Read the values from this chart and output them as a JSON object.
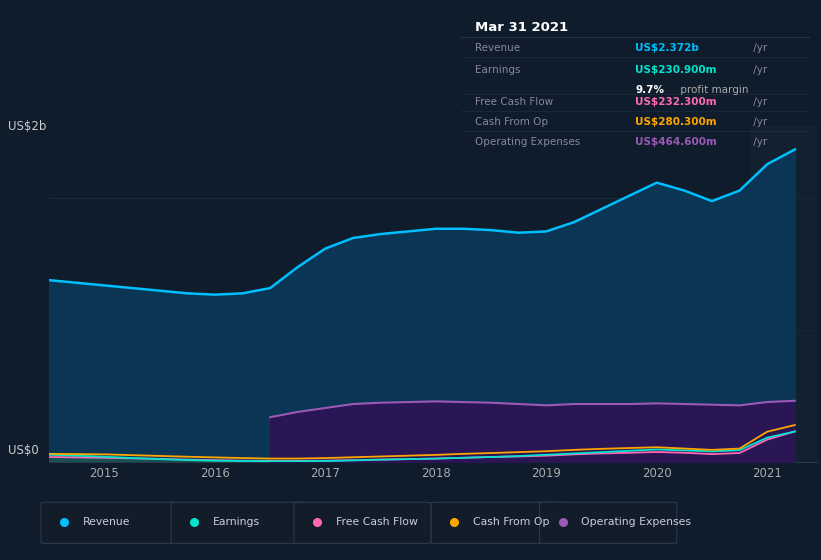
{
  "background_color": "#0e1c2b",
  "plot_bg_color": "#0e1c2b",
  "revenue_color": "#00bfff",
  "revenue_fill": "#0a3a5a",
  "earnings_color": "#00e5cc",
  "earnings_fill": "#1a5050",
  "fcf_color": "#ff69b4",
  "cashop_color": "#ffa500",
  "opex_color": "#9b59b6",
  "opex_fill": "#2d1b5a",
  "tooltip_bg": "#050d14",
  "tooltip_title": "Mar 31 2021",
  "tooltip_revenue_label": "Revenue",
  "tooltip_revenue_val": "US$2.372b",
  "tooltip_earnings_label": "Earnings",
  "tooltip_earnings_val": "US$230.900m",
  "tooltip_profit": "9.7%",
  "tooltip_profit_text": "profit margin",
  "tooltip_fcf_label": "Free Cash Flow",
  "tooltip_fcf_val": "US$232.300m",
  "tooltip_cashop_label": "Cash From Op",
  "tooltip_cashop_val": "US$280.300m",
  "tooltip_opex_label": "Operating Expenses",
  "tooltip_opex_val": "US$464.600m",
  "xlim": [
    2014.5,
    2021.45
  ],
  "ylim": [
    0,
    2550000000.0
  ],
  "revenue_x": [
    2014.5,
    2014.75,
    2015.0,
    2015.25,
    2015.5,
    2015.75,
    2016.0,
    2016.25,
    2016.5,
    2016.75,
    2017.0,
    2017.25,
    2017.5,
    2017.75,
    2018.0,
    2018.25,
    2018.5,
    2018.75,
    2019.0,
    2019.25,
    2019.5,
    2019.75,
    2020.0,
    2020.25,
    2020.5,
    2020.75,
    2021.0,
    2021.25
  ],
  "revenue_y": [
    1380000000.0,
    1360000000.0,
    1340000000.0,
    1320000000.0,
    1300000000.0,
    1280000000.0,
    1270000000.0,
    1280000000.0,
    1320000000.0,
    1480000000.0,
    1620000000.0,
    1700000000.0,
    1730000000.0,
    1750000000.0,
    1770000000.0,
    1770000000.0,
    1760000000.0,
    1740000000.0,
    1750000000.0,
    1820000000.0,
    1920000000.0,
    2020000000.0,
    2120000000.0,
    2060000000.0,
    1980000000.0,
    2060000000.0,
    2260000000.0,
    2372000000.0
  ],
  "opex_x": [
    2016.5,
    2016.75,
    2017.0,
    2017.25,
    2017.5,
    2017.75,
    2018.0,
    2018.25,
    2018.5,
    2018.75,
    2019.0,
    2019.25,
    2019.5,
    2019.75,
    2020.0,
    2020.25,
    2020.5,
    2020.75,
    2021.0,
    2021.25
  ],
  "opex_y": [
    340000000.0,
    380000000.0,
    410000000.0,
    440000000.0,
    450000000.0,
    455000000.0,
    460000000.0,
    455000000.0,
    450000000.0,
    440000000.0,
    430000000.0,
    440000000.0,
    440000000.0,
    440000000.0,
    445000000.0,
    440000000.0,
    435000000.0,
    430000000.0,
    455000000.0,
    464600000.0
  ],
  "earnings_x": [
    2014.5,
    2014.75,
    2015.0,
    2015.25,
    2015.5,
    2015.75,
    2016.0,
    2016.25,
    2016.5,
    2016.75,
    2017.0,
    2017.25,
    2017.5,
    2017.75,
    2018.0,
    2018.25,
    2018.5,
    2018.75,
    2019.0,
    2019.25,
    2019.5,
    2019.75,
    2020.0,
    2020.25,
    2020.5,
    2020.75,
    2021.0,
    2021.25
  ],
  "earnings_y": [
    55000000.0,
    48000000.0,
    40000000.0,
    30000000.0,
    22000000.0,
    15000000.0,
    10000000.0,
    8000000.0,
    6000000.0,
    6000000.0,
    8000000.0,
    12000000.0,
    18000000.0,
    22000000.0,
    26000000.0,
    32000000.0,
    38000000.0,
    45000000.0,
    55000000.0,
    65000000.0,
    75000000.0,
    85000000.0,
    95000000.0,
    88000000.0,
    80000000.0,
    90000000.0,
    185000000.0,
    230900000.0
  ],
  "fcf_x": [
    2014.5,
    2014.75,
    2015.0,
    2015.25,
    2015.5,
    2015.75,
    2016.0,
    2016.25,
    2016.5,
    2016.75,
    2017.0,
    2017.25,
    2017.5,
    2017.75,
    2018.0,
    2018.25,
    2018.5,
    2018.75,
    2019.0,
    2019.25,
    2019.5,
    2019.75,
    2020.0,
    2020.25,
    2020.5,
    2020.75,
    2021.0,
    2021.25
  ],
  "fcf_y": [
    38000000.0,
    35000000.0,
    32000000.0,
    28000000.0,
    24000000.0,
    18000000.0,
    14000000.0,
    10000000.0,
    8000000.0,
    8000000.0,
    10000000.0,
    14000000.0,
    18000000.0,
    22000000.0,
    26000000.0,
    32000000.0,
    38000000.0,
    42000000.0,
    48000000.0,
    58000000.0,
    65000000.0,
    70000000.0,
    76000000.0,
    70000000.0,
    60000000.0,
    68000000.0,
    170000000.0,
    232300000.0
  ],
  "cashop_x": [
    2014.5,
    2014.75,
    2015.0,
    2015.25,
    2015.5,
    2015.75,
    2016.0,
    2016.25,
    2016.5,
    2016.75,
    2017.0,
    2017.25,
    2017.5,
    2017.75,
    2018.0,
    2018.25,
    2018.5,
    2018.75,
    2019.0,
    2019.25,
    2019.5,
    2019.75,
    2020.0,
    2020.25,
    2020.5,
    2020.75,
    2021.0,
    2021.25
  ],
  "cashop_y": [
    62000000.0,
    60000000.0,
    58000000.0,
    52000000.0,
    46000000.0,
    40000000.0,
    35000000.0,
    30000000.0,
    26000000.0,
    26000000.0,
    30000000.0,
    36000000.0,
    42000000.0,
    48000000.0,
    54000000.0,
    62000000.0,
    68000000.0,
    75000000.0,
    82000000.0,
    92000000.0,
    100000000.0,
    106000000.0,
    112000000.0,
    102000000.0,
    92000000.0,
    102000000.0,
    230000000.0,
    280300000.0
  ],
  "legend_items": [
    {
      "label": "Revenue",
      "color": "#00bfff"
    },
    {
      "label": "Earnings",
      "color": "#00e5cc"
    },
    {
      "label": "Free Cash Flow",
      "color": "#ff69b4"
    },
    {
      "label": "Cash From Op",
      "color": "#ffa500"
    },
    {
      "label": "Operating Expenses",
      "color": "#9b59b6"
    }
  ]
}
